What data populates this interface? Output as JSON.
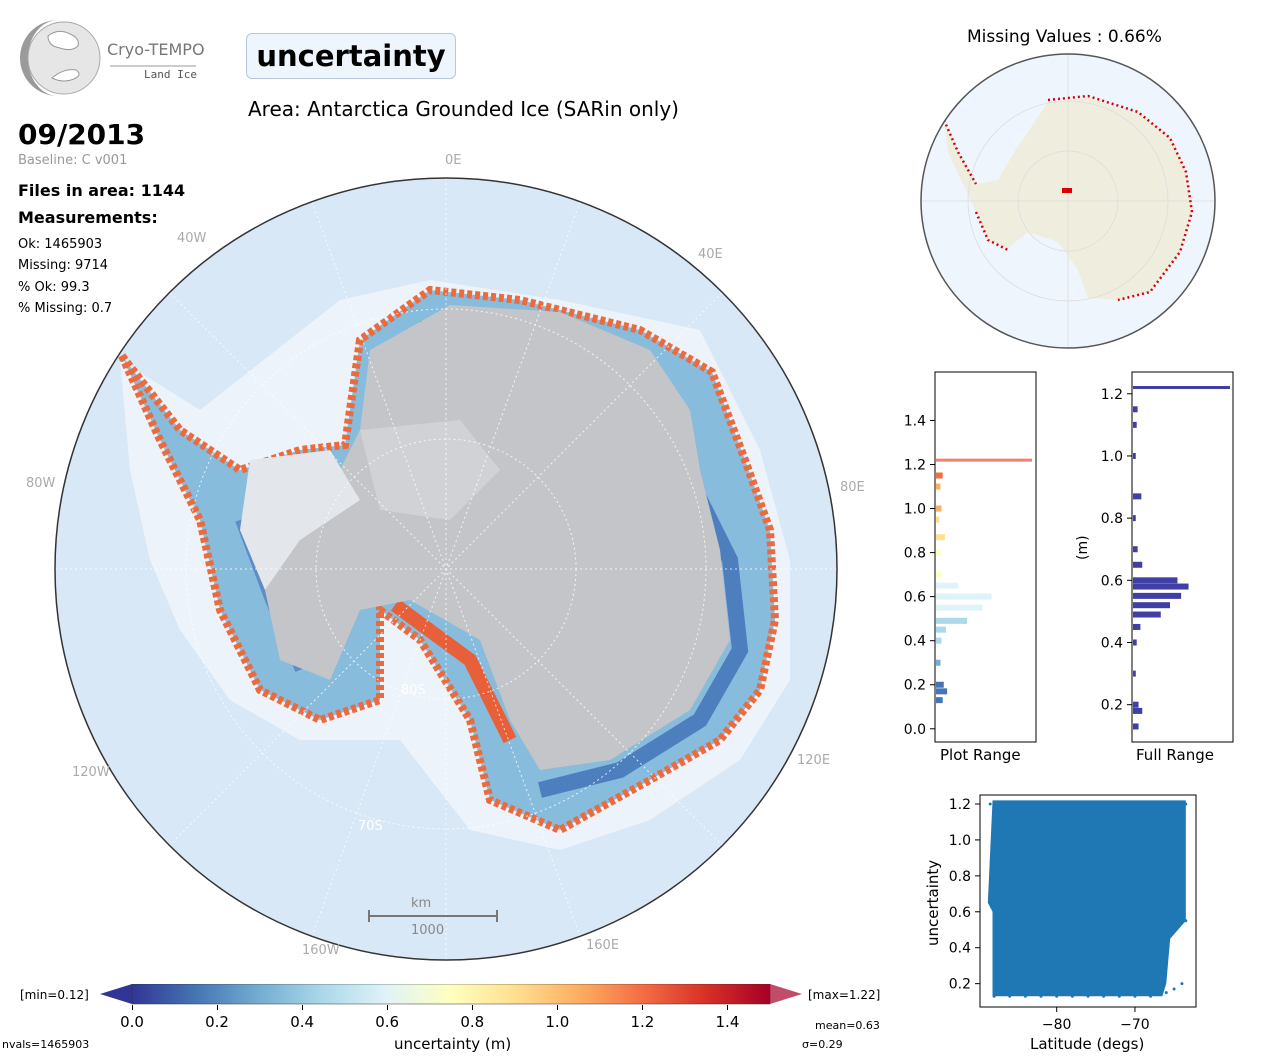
{
  "logo": {
    "name": "Cryo-TEMPO",
    "subtitle": "Land Ice"
  },
  "variable": "uncertainty",
  "area_title": "Area: Antarctica Grounded Ice (SARin only)",
  "date": "09/2013",
  "baseline": "Baseline: C v001",
  "files_in_area": "Files in area: 1144",
  "measurements_label": "Measurements:",
  "stats": {
    "ok": "Ok: 1465903",
    "missing": "Missing: 9714",
    "pct_ok": "% Ok: 99.3",
    "pct_missing": "% Missing: 0.7"
  },
  "map": {
    "lon_labels": {
      "e0": "0E",
      "e40": "40E",
      "e80": "80E",
      "e120": "120E",
      "e160": "160E",
      "w40": "40W",
      "w80": "80W",
      "w120": "120W",
      "w160": "160W"
    },
    "lat_labels": {
      "s70": "70S",
      "s80": "80S"
    },
    "scalebar_unit": "km",
    "scalebar_value": "1000",
    "colors": {
      "ocean": "#d6e7f5",
      "ice": "#c6c8cb",
      "low": "#3a6db5",
      "mid": "#a9d3e6",
      "high": "#e8603a"
    }
  },
  "colorbar": {
    "min_label": "[min=0.12]",
    "max_label": "[max=1.22]",
    "ticks": [
      "0.0",
      "0.2",
      "0.4",
      "0.6",
      "0.8",
      "1.0",
      "1.2",
      "1.4"
    ],
    "label": "uncertainty (m)",
    "nvals": "nvals=1465903",
    "mean": "mean=0.63",
    "sigma": "σ=0.29",
    "colormap": [
      "#313695",
      "#4575b4",
      "#74add1",
      "#abd9e9",
      "#e0f3f8",
      "#ffffbf",
      "#fee090",
      "#fdae61",
      "#f46d43",
      "#d73027",
      "#a50026"
    ]
  },
  "missing_map": {
    "title": "Missing Values : 0.66%",
    "colors": {
      "land": "#efedde",
      "ocean": "#eef5fd",
      "missing": "#dd0000"
    }
  },
  "hist_plot": {
    "xlabel": "Plot Range",
    "yticks": [
      "0.0",
      "0.2",
      "0.4",
      "0.6",
      "0.8",
      "1.0",
      "1.2",
      "1.4"
    ],
    "line_color": "#f0826a"
  },
  "hist_full": {
    "xlabel": "Full Range",
    "ylabel": "(m)",
    "yticks": [
      "0.2",
      "0.4",
      "0.6",
      "0.8",
      "1.0",
      "1.2"
    ],
    "bar_color": "#3f3fa8"
  },
  "scatter": {
    "xlabel": "Latitude (degs)",
    "ylabel": "uncertainty",
    "xticks": [
      "−80",
      "−70"
    ],
    "yticks": [
      "0.2",
      "0.4",
      "0.6",
      "0.8",
      "1.0",
      "1.2"
    ],
    "color": "#1f77b4"
  },
  "chart_data": [
    {
      "type": "bar",
      "title": "",
      "xlabel": "Plot Range",
      "ylabel": "",
      "orientation": "horizontal",
      "ylim": [
        -0.06,
        1.62
      ],
      "categories": [
        0.13,
        0.17,
        0.2,
        0.3,
        0.4,
        0.45,
        0.49,
        0.55,
        0.6,
        0.65,
        0.7,
        0.8,
        0.87,
        0.95,
        1.0,
        1.1,
        1.15
      ],
      "values": [
        0.06,
        0.1,
        0.07,
        0.04,
        0.05,
        0.09,
        0.28,
        0.42,
        0.5,
        0.2,
        0.05,
        0.04,
        0.08,
        0.03,
        0.05,
        0.04,
        0.06
      ],
      "marker_y": 1.22
    },
    {
      "type": "bar",
      "title": "",
      "xlabel": "Full Range",
      "ylabel": "(m)",
      "orientation": "horizontal",
      "ylim": [
        0.08,
        1.27
      ],
      "categories": [
        0.13,
        0.18,
        0.2,
        0.3,
        0.4,
        0.45,
        0.49,
        0.52,
        0.55,
        0.58,
        0.6,
        0.65,
        0.7,
        0.8,
        0.87,
        1.0,
        1.1,
        1.15
      ],
      "values": [
        0.06,
        0.1,
        0.06,
        0.03,
        0.04,
        0.08,
        0.3,
        0.4,
        0.52,
        0.6,
        0.48,
        0.1,
        0.05,
        0.03,
        0.09,
        0.03,
        0.04,
        0.05
      ],
      "marker_y": 1.22
    },
    {
      "type": "scatter",
      "title": "",
      "xlabel": "Latitude (degs)",
      "ylabel": "uncertainty",
      "xlim": [
        -89.8,
        -62.2
      ],
      "ylim": [
        0.07,
        1.25
      ],
      "x": [
        -88,
        -86,
        -84,
        -82,
        -80,
        -78,
        -76,
        -74,
        -72,
        -70,
        -68,
        -67,
        -66,
        -65,
        -64,
        -63.5,
        -88.5,
        -63.5
      ],
      "y": [
        0.13,
        0.13,
        0.13,
        0.13,
        0.13,
        0.13,
        0.13,
        0.13,
        0.13,
        0.13,
        0.13,
        0.14,
        0.15,
        0.17,
        0.2,
        0.55,
        1.2,
        1.2
      ]
    }
  ]
}
